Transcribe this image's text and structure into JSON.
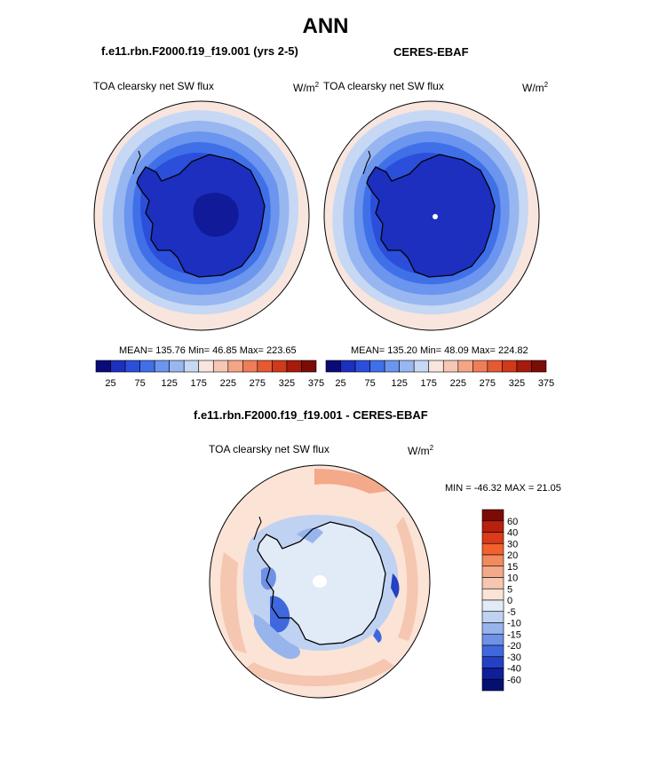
{
  "figure": {
    "title": "ANN"
  },
  "panels": [
    {
      "case": "f.e11.rbn.F2000.f19_f19.001 (yrs 2-5)",
      "variable": "TOA clearsky net SW flux",
      "units_base": "W/m",
      "units_exp": "2",
      "stats": "MEAN= 135.76  Min=  46.85  Max= 223.65"
    },
    {
      "case": "CERES-EBAF",
      "variable": "TOA clearsky net SW flux",
      "units_base": "W/m",
      "units_exp": "2",
      "stats": "MEAN= 135.20  Min=  48.09  Max= 224.82"
    },
    {
      "case": "f.e11.rbn.F2000.f19_f19.001 - CERES-EBAF",
      "variable": "TOA clearsky net SW flux",
      "units_base": "W/m",
      "units_exp": "2",
      "stats": "MIN = -46.32 MAX =  21.05"
    }
  ],
  "colorbar_abs": {
    "colors": [
      "#0a0a78",
      "#1c2fbf",
      "#2b4fdb",
      "#4070e8",
      "#6b95ee",
      "#98b6f0",
      "#c6d8f3",
      "#f8e5de",
      "#f6c7b4",
      "#f4a586",
      "#ef7e58",
      "#e55a33",
      "#cf3a1a",
      "#a61b0b",
      "#7a0d05"
    ],
    "labels": [
      "25",
      "75",
      "125",
      "175",
      "225",
      "275",
      "325",
      "375"
    ]
  },
  "colorbar_diff": {
    "colors": [
      "#7d0b05",
      "#b82010",
      "#dc3a18",
      "#f2612e",
      "#f28a5d",
      "#f3a98a",
      "#f5c6b0",
      "#fbe3d6",
      "#e1eaf7",
      "#c0d2f1",
      "#98b4ec",
      "#6f91e6",
      "#4068de",
      "#2440c4",
      "#101e9a",
      "#050f70"
    ],
    "labels": [
      "60",
      "40",
      "30",
      "20",
      "15",
      "10",
      "5",
      "0",
      "-5",
      "-10",
      "-15",
      "-20",
      "-30",
      "-40",
      "-60"
    ]
  }
}
